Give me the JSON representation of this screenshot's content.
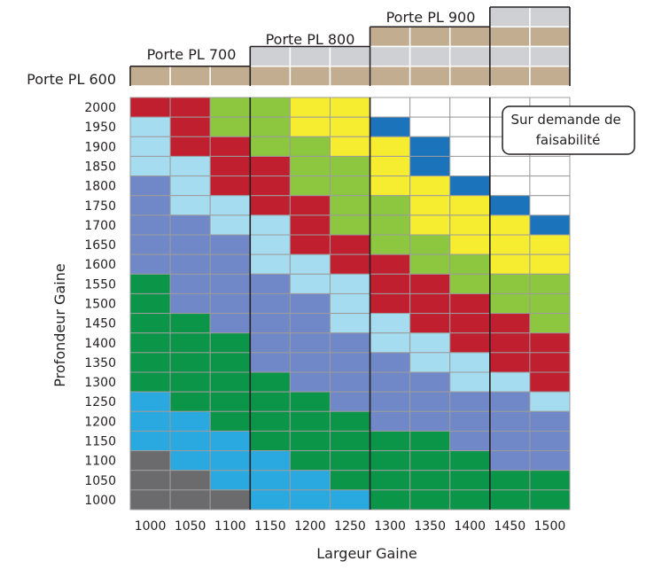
{
  "chart_data": {
    "type": "heatmap",
    "title": "",
    "xlabel": "Largeur Gaine",
    "ylabel": "Profondeur Gaine",
    "x_categories": [
      "1000",
      "1050",
      "1100",
      "1150",
      "1200",
      "1250",
      "1300",
      "1350",
      "1400",
      "1450",
      "1500"
    ],
    "y_categories": [
      "2000",
      "1950",
      "1900",
      "1850",
      "1800",
      "1750",
      "1700",
      "1650",
      "1600",
      "1550",
      "1500",
      "1450",
      "1400",
      "1350",
      "1300",
      "1250",
      "1200",
      "1150",
      "1100",
      "1050",
      "1000"
    ],
    "door_labels": [
      "Porte PL 600",
      "Porte PL 700",
      "Porte PL 800",
      "Porte PL 900"
    ],
    "annotation": "Sur demande de faisabilité",
    "annotation_lines": [
      "Sur demande de",
      "faisabilité"
    ],
    "door_header_colors": {
      "tan": "#c3ad90",
      "gray": "#cfd0d3"
    },
    "door_headers": [
      [
        "",
        "",
        "",
        "",
        "",
        "",
        "",
        "",
        "",
        "G",
        "G"
      ],
      [
        "",
        "",
        "",
        "",
        "",
        "",
        "T",
        "T",
        "T",
        "T",
        "T"
      ],
      [
        "",
        "",
        "",
        "G",
        "G",
        "G",
        "G",
        "G",
        "G",
        "G",
        "G"
      ],
      [
        "T",
        "T",
        "T",
        "T",
        "T",
        "T",
        "T",
        "T",
        "T",
        "T",
        "T"
      ]
    ],
    "color_map": {
      "R": "#c01f2f",
      "L": "#8dc63f",
      "Y": "#f7ed30",
      "W": "#ffffff",
      "D": "#1b73bc",
      "S": "#a6dcf0",
      "P": "#7088c7",
      "G": "#0a9548",
      "C": "#2aa8e0",
      "K": "#6b6b6d"
    },
    "grid": [
      [
        "R",
        "R",
        "L",
        "L",
        "Y",
        "Y",
        "W",
        "W",
        "W",
        "W",
        "W"
      ],
      [
        "S",
        "R",
        "L",
        "L",
        "Y",
        "Y",
        "D",
        "W",
        "W",
        "W",
        "W"
      ],
      [
        "S",
        "R",
        "R",
        "L",
        "L",
        "Y",
        "Y",
        "D",
        "W",
        "W",
        "W"
      ],
      [
        "S",
        "S",
        "R",
        "R",
        "L",
        "L",
        "Y",
        "D",
        "W",
        "W",
        "W"
      ],
      [
        "P",
        "S",
        "R",
        "R",
        "L",
        "L",
        "Y",
        "Y",
        "D",
        "W",
        "W"
      ],
      [
        "P",
        "S",
        "S",
        "R",
        "R",
        "L",
        "L",
        "Y",
        "Y",
        "D",
        "W"
      ],
      [
        "P",
        "P",
        "S",
        "S",
        "R",
        "L",
        "L",
        "Y",
        "Y",
        "Y",
        "D"
      ],
      [
        "P",
        "P",
        "P",
        "S",
        "R",
        "R",
        "L",
        "L",
        "Y",
        "Y",
        "Y"
      ],
      [
        "P",
        "P",
        "P",
        "S",
        "S",
        "R",
        "R",
        "L",
        "L",
        "Y",
        "Y"
      ],
      [
        "G",
        "P",
        "P",
        "P",
        "S",
        "S",
        "R",
        "R",
        "L",
        "L",
        "L"
      ],
      [
        "G",
        "P",
        "P",
        "P",
        "P",
        "S",
        "R",
        "R",
        "R",
        "L",
        "L"
      ],
      [
        "G",
        "G",
        "P",
        "P",
        "P",
        "S",
        "S",
        "R",
        "R",
        "R",
        "L"
      ],
      [
        "G",
        "G",
        "G",
        "P",
        "P",
        "P",
        "S",
        "S",
        "R",
        "R",
        "R"
      ],
      [
        "G",
        "G",
        "G",
        "P",
        "P",
        "P",
        "P",
        "S",
        "S",
        "R",
        "R"
      ],
      [
        "G",
        "G",
        "G",
        "G",
        "P",
        "P",
        "P",
        "P",
        "S",
        "S",
        "R"
      ],
      [
        "C",
        "G",
        "G",
        "G",
        "G",
        "P",
        "P",
        "P",
        "P",
        "P",
        "S"
      ],
      [
        "C",
        "C",
        "G",
        "G",
        "G",
        "G",
        "P",
        "P",
        "P",
        "P",
        "P"
      ],
      [
        "C",
        "C",
        "C",
        "G",
        "G",
        "G",
        "G",
        "G",
        "P",
        "P",
        "P"
      ],
      [
        "K",
        "C",
        "C",
        "C",
        "G",
        "G",
        "G",
        "G",
        "G",
        "P",
        "P"
      ],
      [
        "K",
        "K",
        "C",
        "C",
        "C",
        "G",
        "G",
        "G",
        "G",
        "G",
        "G"
      ],
      [
        "K",
        "K",
        "K",
        "C",
        "C",
        "C",
        "G",
        "G",
        "G",
        "G",
        "G"
      ]
    ]
  }
}
